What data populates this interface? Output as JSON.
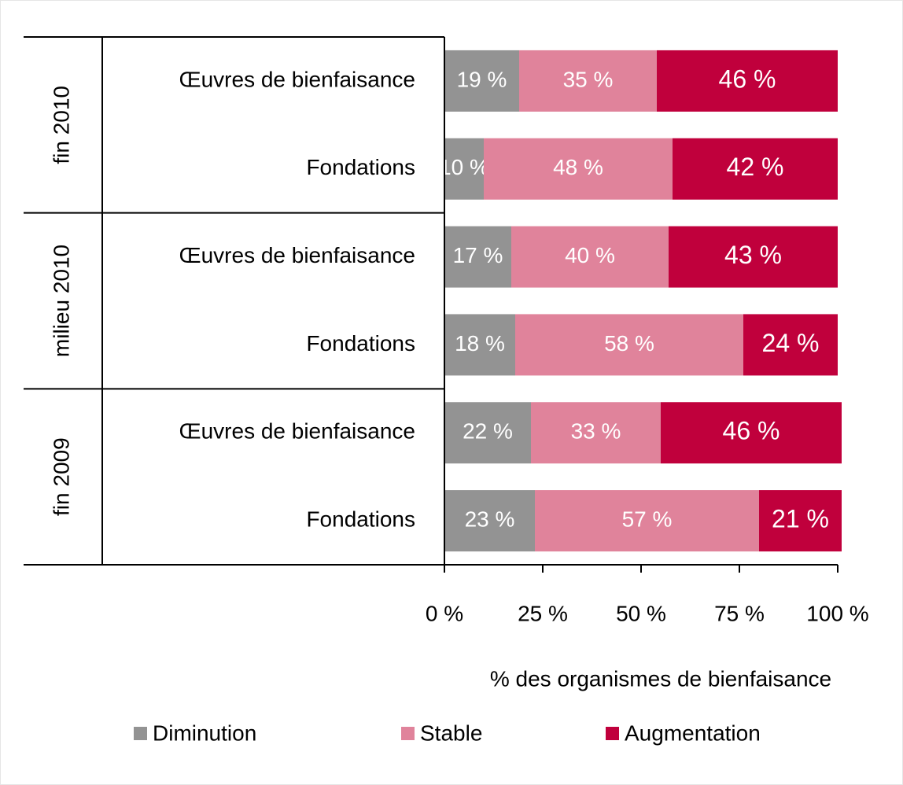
{
  "chart_data": {
    "type": "stacked-barh",
    "groups": [
      "fin 2010",
      "milieu 2010",
      "fin 2009"
    ],
    "categories": [
      "Œuvres de bienfaisance",
      "Fondations",
      "Œuvres de bienfaisance",
      "Fondations",
      "Œuvres de bienfaisance",
      "Fondations"
    ],
    "series": [
      {
        "name": "Diminution",
        "color": "#939393",
        "values": [
          19,
          10,
          17,
          18,
          22,
          23
        ],
        "value_labels": [
          "19 %",
          "10 %",
          "17 %",
          "18 %",
          "22 %",
          "23 %"
        ]
      },
      {
        "name": "Stable",
        "color": "#e0839b",
        "values": [
          35,
          48,
          40,
          58,
          33,
          57
        ],
        "value_labels": [
          "35 %",
          "48 %",
          "40 %",
          "58 %",
          "33 %",
          "57 %"
        ]
      },
      {
        "name": "Augmentation",
        "color": "#c0003c",
        "values": [
          46,
          42,
          43,
          24,
          46,
          21
        ],
        "value_labels": [
          "46 %",
          "42 %",
          "43 %",
          "24 %",
          "46 %",
          "21 %"
        ]
      }
    ],
    "xlabel": "% des organismes de bienfaisance",
    "xlim": [
      0,
      100
    ],
    "xticks": [
      {
        "value": 0,
        "label": "0 %"
      },
      {
        "value": 25,
        "label": "25 %"
      },
      {
        "value": 50,
        "label": "50 %"
      },
      {
        "value": 75,
        "label": "75 %"
      },
      {
        "value": 100,
        "label": "100 %"
      }
    ],
    "legend": "bottom"
  }
}
